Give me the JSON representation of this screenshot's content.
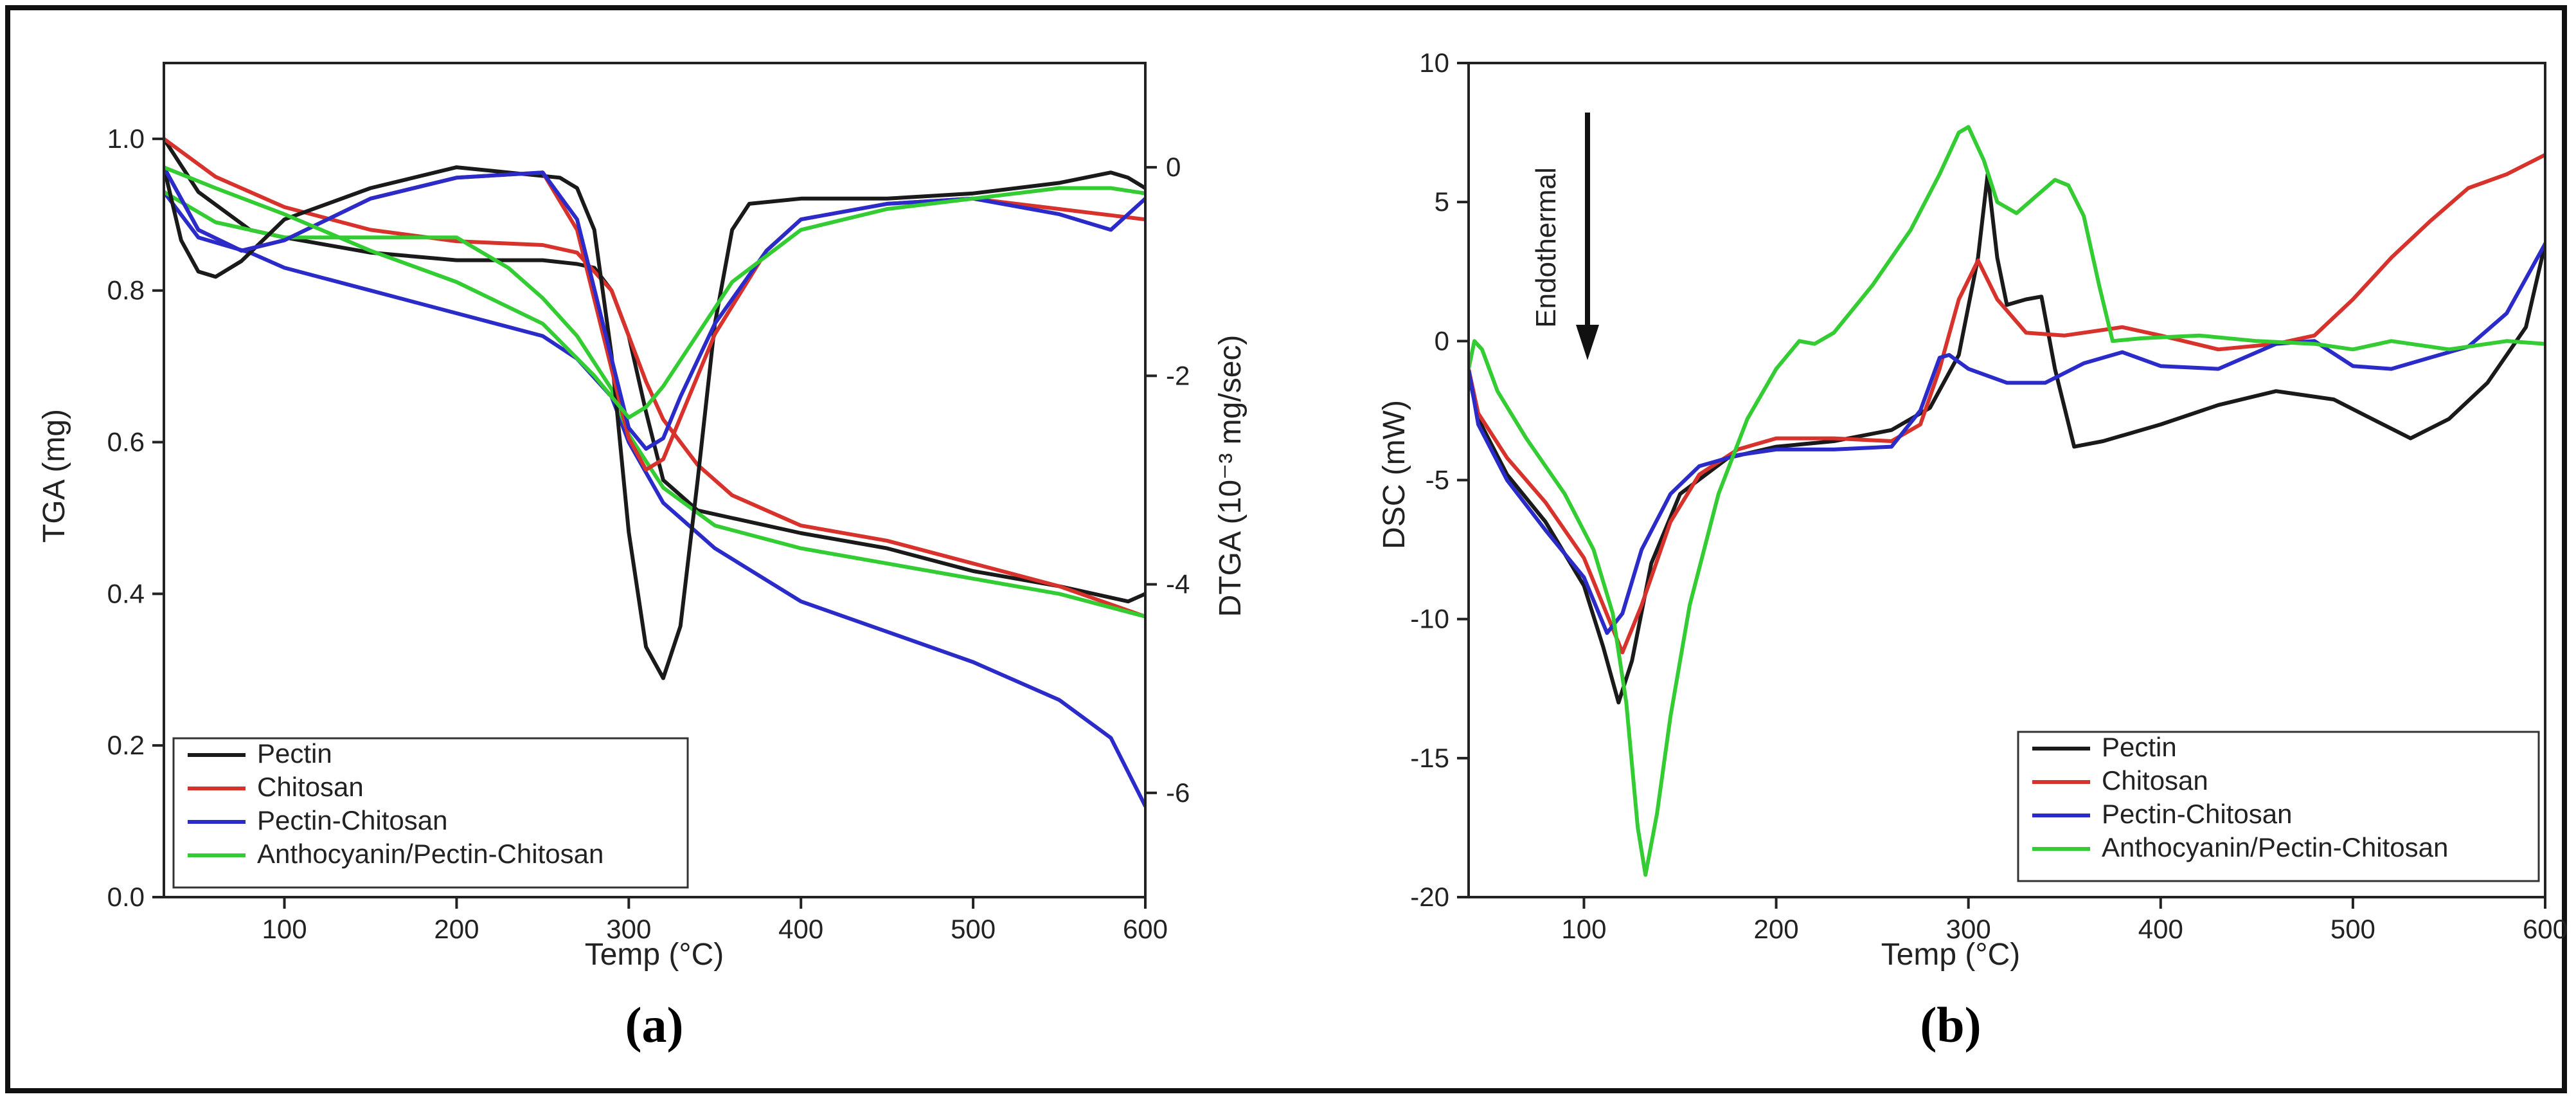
{
  "chart_data": [
    {
      "id": "a",
      "type": "line",
      "caption": "(a)",
      "xlabel": "Temp (°C)",
      "ylabel": "TGA (mg)",
      "y2label": "DTGA (10⁻³ mg/sec)",
      "xlim": [
        30,
        600
      ],
      "ylim": [
        0,
        1.1
      ],
      "y2lim": [
        -7.0,
        1.0
      ],
      "xticks": [
        100,
        200,
        300,
        400,
        500,
        600
      ],
      "yticks": [
        0.0,
        0.2,
        0.4,
        0.6,
        0.8,
        1.0
      ],
      "ytick_labels": [
        "0.0",
        "0.2",
        "0.4",
        "0.6",
        "0.8",
        "1.0"
      ],
      "y2ticks": [
        -6,
        -4,
        -2,
        0
      ],
      "y2tick_labels": [
        "-6",
        "-4",
        "-2",
        "0"
      ],
      "legend": {
        "position": "bottom-left",
        "entries": [
          "Pectin",
          "Chitosan",
          "Pectin-Chitosan",
          "Anthocyanin/Pectin-Chitosan"
        ]
      },
      "series": [
        {
          "name": "Pectin",
          "kind": "TGA",
          "color": "#1a1a1a",
          "x": [
            30,
            50,
            80,
            100,
            150,
            200,
            250,
            270,
            280,
            290,
            300,
            310,
            320,
            340,
            360,
            400,
            450,
            500,
            550,
            590,
            600
          ],
          "y": [
            1.0,
            0.93,
            0.88,
            0.87,
            0.85,
            0.84,
            0.84,
            0.835,
            0.83,
            0.8,
            0.74,
            0.64,
            0.55,
            0.51,
            0.5,
            0.48,
            0.46,
            0.43,
            0.41,
            0.39,
            0.4
          ]
        },
        {
          "name": "Chitosan",
          "kind": "TGA",
          "color": "#d7322b",
          "x": [
            30,
            60,
            100,
            150,
            200,
            250,
            270,
            290,
            300,
            310,
            320,
            340,
            360,
            400,
            450,
            500,
            550,
            600
          ],
          "y": [
            1.0,
            0.95,
            0.91,
            0.88,
            0.865,
            0.86,
            0.85,
            0.8,
            0.74,
            0.68,
            0.63,
            0.57,
            0.53,
            0.49,
            0.47,
            0.44,
            0.41,
            0.37
          ]
        },
        {
          "name": "Pectin-Chitosan",
          "kind": "TGA",
          "color": "#2b2bc9",
          "x": [
            30,
            50,
            80,
            100,
            150,
            200,
            250,
            270,
            290,
            300,
            320,
            350,
            400,
            450,
            500,
            550,
            580,
            600
          ],
          "y": [
            0.93,
            0.87,
            0.85,
            0.83,
            0.8,
            0.77,
            0.74,
            0.71,
            0.66,
            0.6,
            0.52,
            0.46,
            0.39,
            0.35,
            0.31,
            0.26,
            0.21,
            0.12
          ]
        },
        {
          "name": "Anthocyanin/Pectin-Chitosan",
          "kind": "TGA",
          "color": "#33cc33",
          "x": [
            30,
            60,
            100,
            150,
            200,
            230,
            250,
            270,
            290,
            300,
            320,
            350,
            400,
            450,
            500,
            550,
            600
          ],
          "y": [
            0.93,
            0.89,
            0.87,
            0.87,
            0.87,
            0.83,
            0.79,
            0.74,
            0.67,
            0.61,
            0.54,
            0.49,
            0.46,
            0.44,
            0.42,
            0.4,
            0.37
          ]
        },
        {
          "name": "Pectin",
          "kind": "DTGA",
          "color": "#1a1a1a",
          "x": [
            30,
            40,
            50,
            60,
            75,
            100,
            150,
            200,
            230,
            260,
            270,
            280,
            290,
            300,
            310,
            320,
            330,
            340,
            350,
            360,
            370,
            400,
            450,
            500,
            550,
            580,
            590,
            600
          ],
          "y": [
            0.0,
            -0.7,
            -1.0,
            -1.05,
            -0.9,
            -0.5,
            -0.2,
            0.0,
            -0.05,
            -0.1,
            -0.2,
            -0.6,
            -1.8,
            -3.5,
            -4.6,
            -4.9,
            -4.4,
            -3.0,
            -1.5,
            -0.6,
            -0.35,
            -0.3,
            -0.3,
            -0.25,
            -0.15,
            -0.05,
            -0.1,
            -0.2
          ]
        },
        {
          "name": "Chitosan",
          "kind": "DTGA",
          "color": "#d7322b",
          "x": [
            30,
            50,
            75,
            100,
            150,
            200,
            250,
            270,
            285,
            300,
            310,
            320,
            330,
            350,
            380,
            400,
            450,
            500,
            550,
            600
          ],
          "y": [
            0.0,
            -0.6,
            -0.8,
            -0.7,
            -0.3,
            -0.1,
            -0.05,
            -0.6,
            -1.6,
            -2.6,
            -2.9,
            -2.8,
            -2.4,
            -1.6,
            -0.8,
            -0.5,
            -0.35,
            -0.3,
            -0.4,
            -0.5
          ]
        },
        {
          "name": "Pectin-Chitosan",
          "kind": "DTGA",
          "color": "#2b2bc9",
          "x": [
            30,
            50,
            75,
            100,
            150,
            200,
            250,
            270,
            285,
            300,
            310,
            320,
            330,
            350,
            380,
            400,
            450,
            500,
            550,
            580,
            600
          ],
          "y": [
            0.0,
            -0.6,
            -0.8,
            -0.7,
            -0.3,
            -0.1,
            -0.05,
            -0.5,
            -1.5,
            -2.5,
            -2.7,
            -2.6,
            -2.2,
            -1.5,
            -0.8,
            -0.5,
            -0.35,
            -0.3,
            -0.45,
            -0.6,
            -0.3
          ]
        },
        {
          "name": "Anthocyanin/Pectin-Chitosan",
          "kind": "DTGA",
          "color": "#33cc33",
          "x": [
            30,
            60,
            100,
            150,
            200,
            250,
            280,
            300,
            310,
            320,
            340,
            360,
            400,
            450,
            500,
            550,
            580,
            600
          ],
          "y": [
            0.0,
            -0.2,
            -0.45,
            -0.8,
            -1.1,
            -1.5,
            -2.0,
            -2.4,
            -2.3,
            -2.1,
            -1.6,
            -1.1,
            -0.6,
            -0.4,
            -0.3,
            -0.2,
            -0.2,
            -0.25
          ]
        }
      ]
    },
    {
      "id": "b",
      "type": "line",
      "caption": "(b)",
      "xlabel": "Temp (°C)",
      "ylabel": "DSC (mW)",
      "annotation": "Endothermal",
      "xlim": [
        40,
        600
      ],
      "ylim": [
        -20,
        10
      ],
      "xticks": [
        100,
        200,
        300,
        400,
        500,
        600
      ],
      "yticks": [
        -20,
        -15,
        -10,
        -5,
        0,
        5,
        10
      ],
      "ytick_labels": [
        "-20",
        "-15",
        "-10",
        "-5",
        "0",
        "5",
        "10"
      ],
      "legend": {
        "position": "bottom-right",
        "entries": [
          "Pectin",
          "Chitosan",
          "Pectin-Chitosan",
          "Anthocyanin/Pectin-Chitosan"
        ]
      },
      "series": [
        {
          "name": "Pectin",
          "color": "#1a1a1a",
          "x": [
            40,
            45,
            60,
            80,
            100,
            110,
            118,
            125,
            135,
            150,
            175,
            200,
            230,
            260,
            280,
            295,
            305,
            310,
            315,
            320,
            325,
            330,
            338,
            345,
            355,
            370,
            400,
            430,
            460,
            490,
            510,
            530,
            550,
            570,
            590,
            600
          ],
          "y": [
            -1.2,
            -2.8,
            -4.8,
            -6.5,
            -8.8,
            -11.0,
            -13.0,
            -11.5,
            -8.0,
            -5.5,
            -4.2,
            -3.8,
            -3.6,
            -3.2,
            -2.4,
            -0.5,
            3.0,
            6.0,
            3.0,
            1.3,
            1.4,
            1.5,
            1.6,
            -1.0,
            -3.8,
            -3.6,
            -3.0,
            -2.3,
            -1.8,
            -2.1,
            -2.8,
            -3.5,
            -2.8,
            -1.5,
            0.5,
            3.5
          ]
        },
        {
          "name": "Chitosan",
          "color": "#d7322b",
          "x": [
            40,
            45,
            60,
            80,
            100,
            110,
            120,
            130,
            145,
            160,
            180,
            200,
            230,
            260,
            275,
            285,
            295,
            305,
            315,
            330,
            350,
            380,
            400,
            430,
            460,
            480,
            500,
            520,
            540,
            560,
            580,
            600
          ],
          "y": [
            -1.0,
            -2.6,
            -4.2,
            -5.8,
            -7.8,
            -9.5,
            -11.2,
            -9.5,
            -6.5,
            -4.8,
            -3.9,
            -3.5,
            -3.5,
            -3.6,
            -3.0,
            -1.0,
            1.5,
            2.9,
            1.5,
            0.3,
            0.2,
            0.5,
            0.2,
            -0.3,
            -0.1,
            0.2,
            1.5,
            3.0,
            4.3,
            5.5,
            6.0,
            6.7
          ]
        },
        {
          "name": "Pectin-Chitosan",
          "color": "#2b2bc9",
          "x": [
            40,
            45,
            60,
            80,
            100,
            112,
            120,
            130,
            145,
            160,
            180,
            200,
            230,
            260,
            275,
            285,
            290,
            300,
            320,
            340,
            360,
            380,
            400,
            430,
            460,
            480,
            500,
            520,
            540,
            560,
            580,
            600
          ],
          "y": [
            -1.0,
            -3.0,
            -5.0,
            -6.8,
            -8.5,
            -10.5,
            -9.8,
            -7.5,
            -5.5,
            -4.5,
            -4.1,
            -3.9,
            -3.9,
            -3.8,
            -2.5,
            -0.6,
            -0.5,
            -1.0,
            -1.5,
            -1.5,
            -0.8,
            -0.4,
            -0.9,
            -1.0,
            -0.1,
            0.0,
            -0.9,
            -1.0,
            -0.6,
            -0.2,
            1.0,
            3.5
          ]
        },
        {
          "name": "Anthocyanin/Pectin-Chitosan",
          "color": "#33cc33",
          "x": [
            40,
            43,
            47,
            55,
            70,
            90,
            105,
            115,
            122,
            128,
            132,
            138,
            145,
            155,
            170,
            185,
            200,
            212,
            220,
            230,
            250,
            270,
            285,
            295,
            300,
            308,
            315,
            325,
            335,
            345,
            352,
            360,
            368,
            375,
            390,
            420,
            450,
            480,
            500,
            520,
            550,
            580,
            600
          ],
          "y": [
            -1.0,
            0.0,
            -0.3,
            -1.8,
            -3.5,
            -5.5,
            -7.5,
            -9.8,
            -13.0,
            -17.5,
            -19.2,
            -17.0,
            -13.5,
            -9.5,
            -5.5,
            -2.8,
            -1.0,
            0.0,
            -0.1,
            0.3,
            2.0,
            4.0,
            6.0,
            7.5,
            7.7,
            6.5,
            5.0,
            4.6,
            5.2,
            5.8,
            5.6,
            4.5,
            2.0,
            0.0,
            0.1,
            0.2,
            0.0,
            -0.1,
            -0.3,
            0.0,
            -0.3,
            0.0,
            -0.1
          ]
        }
      ]
    }
  ]
}
